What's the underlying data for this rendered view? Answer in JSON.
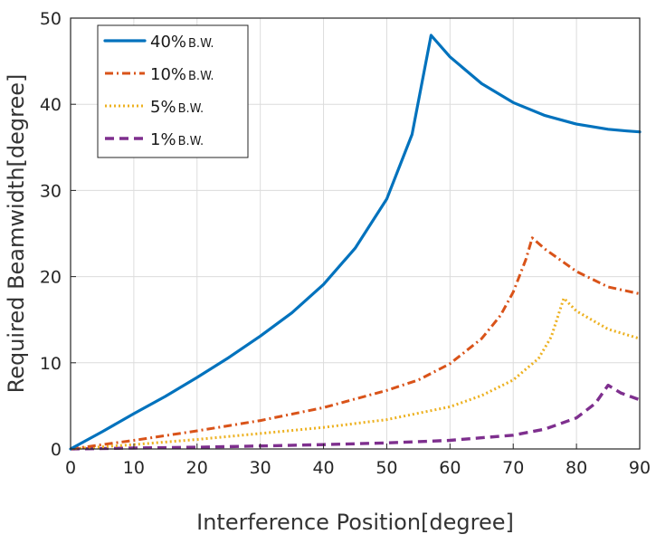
{
  "chart_data": {
    "type": "line",
    "title": "",
    "xlabel": "Interference Position[degree]",
    "ylabel": "Required Beamwidth[degree]",
    "xlim": [
      0,
      90
    ],
    "ylim": [
      0,
      50
    ],
    "xticks": [
      0,
      10,
      20,
      30,
      40,
      50,
      60,
      70,
      80,
      90
    ],
    "yticks": [
      0,
      10,
      20,
      30,
      40,
      50
    ],
    "grid": true,
    "legend_position": "top-left",
    "series": [
      {
        "name": "40%",
        "name_suffix": "B.W.",
        "color": "#0072BD",
        "style": "solid",
        "x": [
          0,
          5,
          10,
          15,
          20,
          25,
          30,
          35,
          40,
          45,
          50,
          54,
          57,
          60,
          65,
          70,
          75,
          80,
          85,
          88,
          90
        ],
        "y": [
          0,
          2.0,
          4.1,
          6.1,
          8.3,
          10.6,
          13.1,
          15.8,
          19.1,
          23.3,
          29.0,
          36.5,
          48.0,
          45.5,
          42.4,
          40.2,
          38.7,
          37.7,
          37.1,
          36.9,
          36.8
        ]
      },
      {
        "name": "10%",
        "name_suffix": "B.W.",
        "color": "#D95319",
        "style": "dash-dot",
        "x": [
          0,
          10,
          20,
          30,
          40,
          50,
          55,
          60,
          65,
          68,
          70,
          72,
          73,
          75,
          80,
          85,
          90
        ],
        "y": [
          0,
          1.0,
          2.1,
          3.3,
          4.8,
          6.8,
          8.0,
          9.9,
          12.8,
          15.5,
          18.2,
          22.0,
          24.5,
          23.2,
          20.6,
          18.8,
          18.0
        ]
      },
      {
        "name": "5%",
        "name_suffix": "B.W.",
        "color": "#EDB120",
        "style": "dotted",
        "x": [
          0,
          10,
          20,
          30,
          40,
          50,
          60,
          65,
          70,
          74,
          76,
          78,
          80,
          85,
          90
        ],
        "y": [
          0,
          0.5,
          1.1,
          1.8,
          2.5,
          3.4,
          4.9,
          6.2,
          8.0,
          10.5,
          13.0,
          17.5,
          16.0,
          13.9,
          12.8
        ]
      },
      {
        "name": "1%",
        "name_suffix": "B.W.",
        "color": "#7E2F8E",
        "style": "dashed",
        "x": [
          0,
          10,
          20,
          30,
          40,
          50,
          60,
          70,
          75,
          80,
          83,
          85,
          87,
          90
        ],
        "y": [
          0,
          0.1,
          0.2,
          0.35,
          0.5,
          0.7,
          1.0,
          1.6,
          2.3,
          3.6,
          5.3,
          7.4,
          6.5,
          5.7
        ]
      }
    ]
  }
}
